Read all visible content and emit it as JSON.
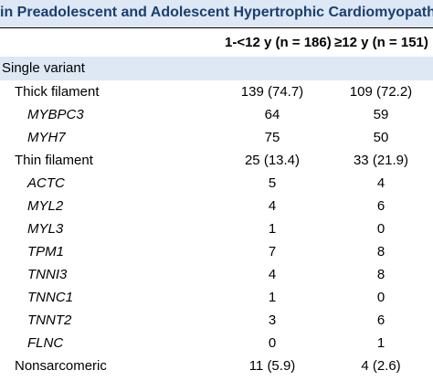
{
  "title": "in Preadolescent and Adolescent Hypertrophic Cardiomyopathy",
  "columns": {
    "col1": "1-<12 y (n = 186)",
    "col2": "≥12 y (n = 151)"
  },
  "section": "Single variant",
  "rows": [
    {
      "label": "Thick filament",
      "c1": "139 (74.7)",
      "c2": "109 (72.2)"
    },
    {
      "label": "MYBPC3",
      "c1": "64",
      "c2": "59"
    },
    {
      "label": "MYH7",
      "c1": "75",
      "c2": "50"
    },
    {
      "label": "Thin filament",
      "c1": "25 (13.4)",
      "c2": "33 (21.9)"
    },
    {
      "label": "ACTC",
      "c1": "5",
      "c2": "4"
    },
    {
      "label": "MYL2",
      "c1": "4",
      "c2": "6"
    },
    {
      "label": "MYL3",
      "c1": "1",
      "c2": "0"
    },
    {
      "label": "TPM1",
      "c1": "7",
      "c2": "8"
    },
    {
      "label": "TNNI3",
      "c1": "4",
      "c2": "8"
    },
    {
      "label": "TNNC1",
      "c1": "1",
      "c2": "0"
    },
    {
      "label": "TNNT2",
      "c1": "3",
      "c2": "6"
    },
    {
      "label": "FLNC",
      "c1": "0",
      "c2": "1"
    },
    {
      "label": "Nonsarcomeric",
      "c1": "11 (5.9)",
      "c2": "4 (2.6)"
    }
  ],
  "colors": {
    "title_text": "#1a3f6f",
    "band": "#dde8f4"
  }
}
